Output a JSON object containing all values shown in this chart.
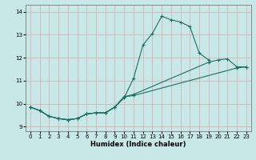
{
  "xlabel": "Humidex (Indice chaleur)",
  "ylabel": "",
  "xlim": [
    -0.5,
    23.5
  ],
  "ylim": [
    8.8,
    14.3
  ],
  "xticks": [
    0,
    1,
    2,
    3,
    4,
    5,
    6,
    7,
    8,
    9,
    10,
    11,
    12,
    13,
    14,
    15,
    16,
    17,
    18,
    19,
    20,
    21,
    22,
    23
  ],
  "yticks": [
    9,
    10,
    11,
    12,
    13,
    14
  ],
  "background_color": "#c8e8e8",
  "grid_color": "#d8a8a8",
  "line_color": "#1a7060",
  "series1_x": [
    0,
    1,
    2,
    3,
    4,
    5,
    6,
    7,
    8,
    9,
    10,
    11,
    12,
    13,
    14,
    15,
    16,
    17,
    18,
    19
  ],
  "series1_y": [
    9.85,
    9.7,
    9.45,
    9.35,
    9.3,
    9.35,
    9.55,
    9.6,
    9.6,
    9.85,
    10.25,
    11.1,
    12.55,
    13.05,
    13.8,
    13.65,
    13.55,
    13.35,
    12.2,
    11.9
  ],
  "series2_x": [
    0,
    1,
    2,
    3,
    4,
    5,
    6,
    7,
    8,
    9,
    10,
    11,
    19,
    20,
    21,
    22,
    23
  ],
  "series2_y": [
    9.85,
    9.7,
    9.45,
    9.35,
    9.3,
    9.35,
    9.55,
    9.6,
    9.6,
    9.85,
    10.3,
    10.4,
    11.8,
    11.9,
    11.95,
    11.6,
    11.6
  ],
  "series3_x": [
    0,
    1,
    2,
    3,
    4,
    5,
    6,
    7,
    8,
    9,
    10,
    11,
    22,
    23
  ],
  "series3_y": [
    9.85,
    9.7,
    9.45,
    9.35,
    9.3,
    9.35,
    9.55,
    9.6,
    9.6,
    9.85,
    10.3,
    10.35,
    11.55,
    11.6
  ]
}
